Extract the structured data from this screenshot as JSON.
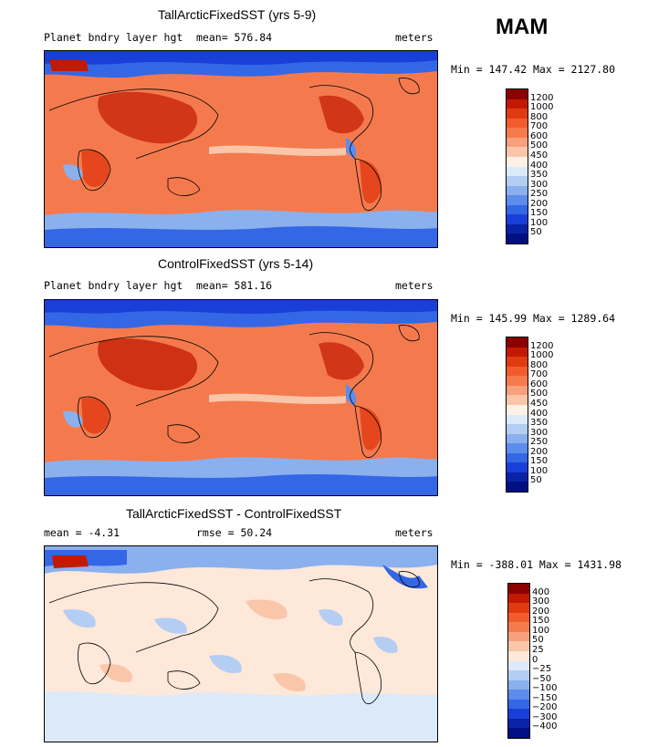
{
  "season": "MAM",
  "panels": [
    {
      "title": "TallArcticFixedSST (yrs 5-9)",
      "left_label": "Planet bndry layer hgt",
      "stat_label": "mean= 576.84",
      "units": "meters",
      "minmax": "Min = 147.42  Max = 2127.80",
      "levels": [
        "1200",
        "1000",
        "800",
        "700",
        "600",
        "500",
        "450",
        "400",
        "350",
        "300",
        "250",
        "200",
        "150",
        "100",
        "50"
      ]
    },
    {
      "title": "ControlFixedSST (yrs 5-14)",
      "left_label": "Planet bndry layer hgt",
      "stat_label": "mean= 581.16",
      "units": "meters",
      "minmax": "Min = 145.99  Max = 1289.64",
      "levels": [
        "1200",
        "1000",
        "800",
        "700",
        "600",
        "500",
        "450",
        "400",
        "350",
        "300",
        "250",
        "200",
        "150",
        "100",
        "50"
      ]
    },
    {
      "title": "TallArcticFixedSST - ControlFixedSST",
      "left_label": "mean =   -4.31",
      "stat_label": "rmse =   50.24",
      "units": "meters",
      "minmax": "Min = -388.01  Max = 1431.98",
      "levels": [
        "400",
        "300",
        "200",
        "150",
        "100",
        "50",
        "25",
        "0",
        "−25",
        "−50",
        "−100",
        "−150",
        "−200",
        "−300",
        "−400"
      ]
    }
  ],
  "colors": {
    "abs_scale": [
      "#8b0000",
      "#c11a00",
      "#e13a12",
      "#f25c2c",
      "#f57b4d",
      "#f7a07c",
      "#fac6aa",
      "#fdf1e6",
      "#dce9f8",
      "#b4cdf3",
      "#8ab0ee",
      "#5d8cea",
      "#3467e6",
      "#1a3fd8",
      "#0a22a6",
      "#000f84"
    ],
    "diff_scale": [
      "#8b0000",
      "#c11a00",
      "#e13a12",
      "#f25c2c",
      "#f57b4d",
      "#f7a07c",
      "#fac6aa",
      "#fde8da",
      "#dce9f8",
      "#b4cdf3",
      "#8ab0ee",
      "#5d8cea",
      "#3467e6",
      "#1a3fd8",
      "#0a22a6",
      "#000f84"
    ]
  }
}
